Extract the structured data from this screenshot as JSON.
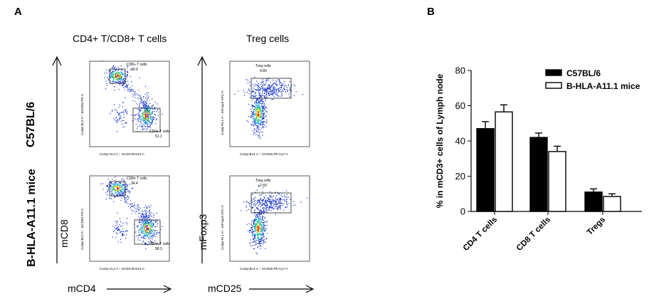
{
  "panel_a": {
    "letter": "A",
    "col_headers": [
      "CD4+ T/CD8+ T cells",
      "Treg cells"
    ],
    "row_labels": [
      "C57BL/6",
      "B-HLA-A11.1 mice"
    ],
    "axis_labels": {
      "y1": "mCD8",
      "x1": "mCD4",
      "y2": "mFoxp3",
      "x2": "mCD25"
    },
    "plot_axis_text": {
      "cd_x": "Comp-VL1-A :: mCD4-BV421-A",
      "cd_y": "Comp-BL2-A :: mCD8a-PE-A",
      "treg_x": "Comp-BL4-A :: mCD25-PE-Cy7-A",
      "treg_y": "Comp-RL1-A :: mFoxp3-APC-A"
    },
    "gates": {
      "c57_cd8_label": "CD8+ T cells",
      "c57_cd8_value": "40.9",
      "c57_cd4_label": "CD4+ T cells",
      "c57_cd4_value": "51.1",
      "c57_treg_label": "Treg cells",
      "c57_treg_value": "9.80",
      "hla_cd8_label": "CD8+ T cells",
      "hla_cd8_value": "34.4",
      "hla_cd4_label": "CD4+ T cells",
      "hla_cd4_value": "58.3",
      "hla_treg_label": "Treg cells",
      "hla_treg_value": "7.60"
    }
  },
  "panel_b": {
    "letter": "B"
  },
  "chart_data": {
    "type": "bar",
    "categories": [
      "CD4 T cells",
      "CD8 T cells",
      "Tregs"
    ],
    "series": [
      {
        "name": "C57BL/6",
        "values": [
          47,
          42,
          11
        ],
        "errors": [
          4,
          2.5,
          1.8
        ],
        "color": "#000000"
      },
      {
        "name": "B-HLA-A11.1 mice",
        "values": [
          56.5,
          34,
          8.5
        ],
        "errors": [
          4,
          3,
          1.5
        ],
        "color": "#ffffff"
      }
    ],
    "ylabel": "% in mCD3+ cells of Lymph node",
    "ylim": [
      0,
      80
    ],
    "yticks": [
      "0",
      "20",
      "40",
      "60",
      "80"
    ],
    "legend_position": "top-right",
    "grid": false
  }
}
